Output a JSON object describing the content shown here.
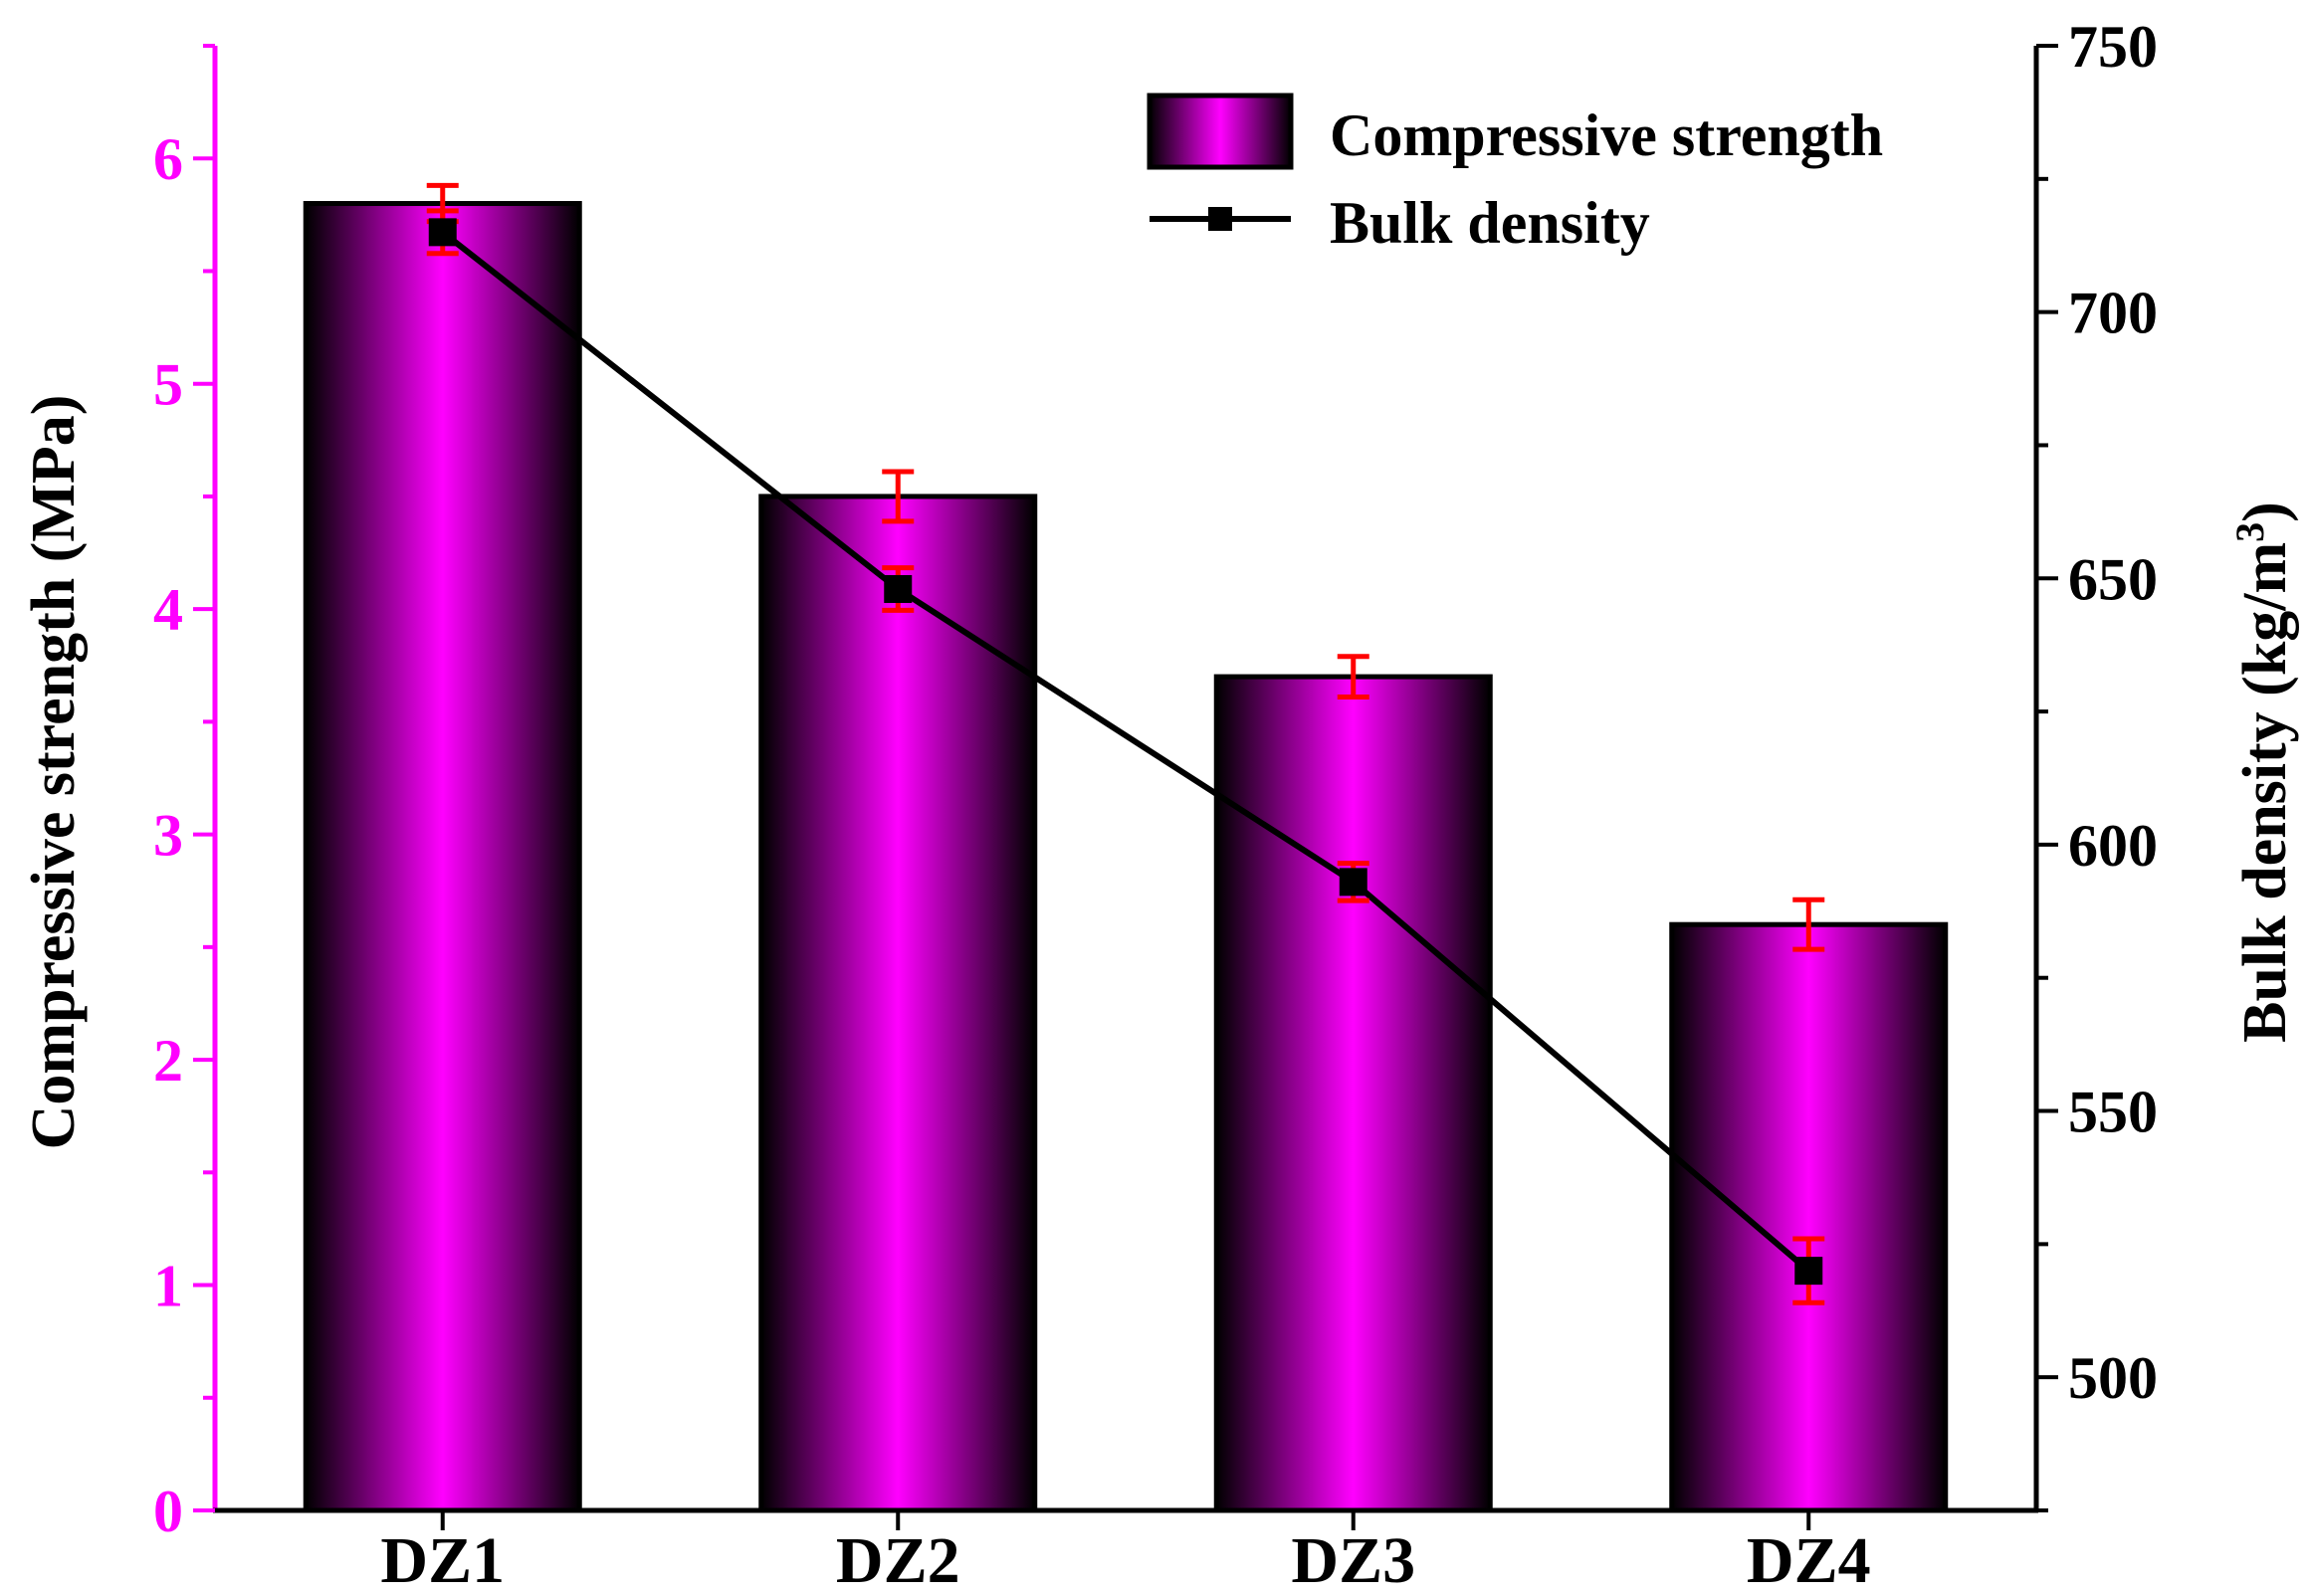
{
  "chart_data": {
    "type": "bar",
    "categories": [
      "DZ1",
      "DZ2",
      "DZ3",
      "DZ4"
    ],
    "series": [
      {
        "name": "Compressive strength",
        "kind": "bar",
        "axis": "left",
        "values": [
          5.8,
          4.5,
          3.7,
          2.6
        ],
        "errors": [
          0.08,
          0.11,
          0.09,
          0.11
        ]
      },
      {
        "name": "Bulk density",
        "kind": "line",
        "axis": "right",
        "marker": "square",
        "values": [
          715,
          648,
          593,
          520
        ],
        "errors": [
          4,
          4,
          3.5,
          6
        ]
      }
    ],
    "ylabel": "Compressive strength (MPa)",
    "y2label_main": "Bulk density (kg/m",
    "y2label_sup": "3",
    "y2label_end": ")",
    "ylim": [
      0,
      6.5
    ],
    "y2lim": [
      475,
      750
    ],
    "yticks": [
      "0",
      "1",
      "2",
      "3",
      "4",
      "5",
      "6"
    ],
    "y2ticks": [
      "500",
      "550",
      "600",
      "650",
      "700",
      "750"
    ],
    "legend_position": "top-right",
    "colors": {
      "bar_center": "#ff00ff",
      "bar_edge": "#000000",
      "left_axis": "#ff00ff",
      "line": "#000000",
      "error_bar": "#ff0000"
    }
  }
}
